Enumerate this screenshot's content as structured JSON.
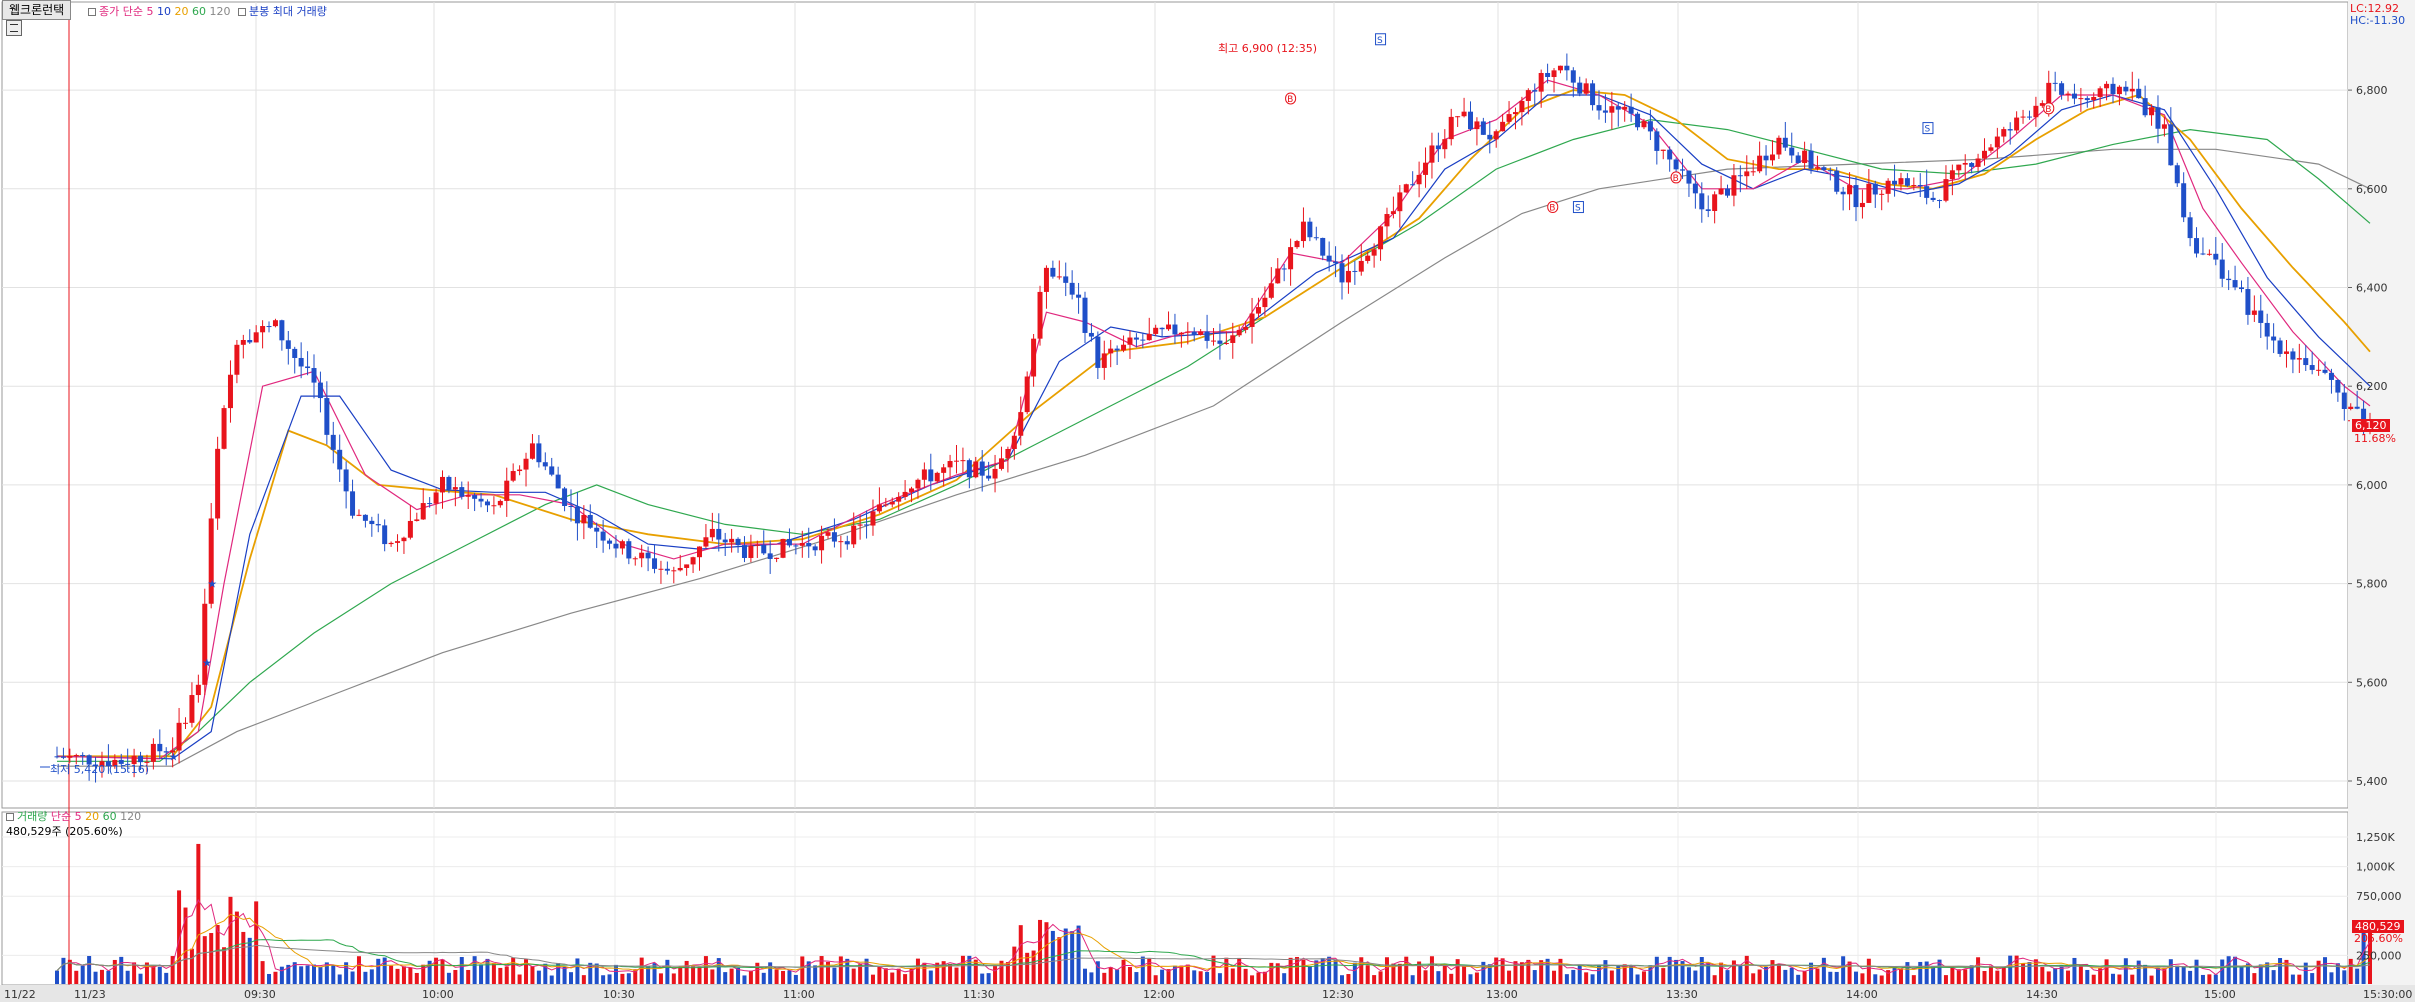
{
  "window": {
    "tab_label": "웹크론런택",
    "settings_button": "gear-icon"
  },
  "price_panel": {
    "legend": {
      "series_label": "종가 단순",
      "ma": [
        {
          "label": "5",
          "color": "#e0287e"
        },
        {
          "label": "10",
          "color": "#1a3fc4"
        },
        {
          "label": "20",
          "color": "#e8a000"
        },
        {
          "label": "60",
          "color": "#2fa84f"
        },
        {
          "label": "120",
          "color": "#888888"
        }
      ],
      "extra_label": "분봉 최대 거래량"
    },
    "top_right": {
      "lc": "LC:12.92",
      "hc": "HC:-11.30"
    },
    "y_ticks": [
      "6,800",
      "6,600",
      "6,400",
      "6,200",
      "6,000",
      "5,800",
      "5,600",
      "5,400"
    ],
    "high_annotation": "최고 6,900 (12:35)",
    "low_annotation": "최저 5,420 (15:16)",
    "current_price": "6,120",
    "current_change": "11.68%",
    "up_color": "#e8141c",
    "down_color": "#1f4fc8"
  },
  "volume_panel": {
    "legend": {
      "series_label": "거래량",
      "ma_label": "단순",
      "ma": [
        {
          "label": "5",
          "color": "#e0287e"
        },
        {
          "label": "20",
          "color": "#e8a000"
        },
        {
          "label": "60",
          "color": "#2fa84f"
        },
        {
          "label": "120",
          "color": "#888888"
        }
      ]
    },
    "current_volume": "480,529주 (205.60%)",
    "y_ticks": [
      "1,250K",
      "1,000K",
      "750,000",
      "250,000"
    ],
    "current_value": "480,529",
    "current_pct": "205.60%"
  },
  "time_axis": {
    "labels": [
      "11/22",
      "11/23",
      "09:30",
      "10:00",
      "10:30",
      "11:00",
      "11:30",
      "12:00",
      "12:30",
      "13:00",
      "13:30",
      "14:00",
      "14:30",
      "15:00",
      "15:30:00"
    ]
  },
  "chart_data": {
    "type": "candlestick",
    "price_ylim": [
      5400,
      6900
    ],
    "volume_ylim": [
      0,
      1250000
    ],
    "price_path": [
      [
        0,
        5450
      ],
      [
        25,
        5440
      ],
      [
        45,
        5470
      ],
      [
        55,
        5600
      ],
      [
        62,
        6050
      ],
      [
        70,
        6300
      ],
      [
        85,
        6320
      ],
      [
        100,
        6200
      ],
      [
        115,
        5950
      ],
      [
        130,
        5880
      ],
      [
        150,
        6000
      ],
      [
        170,
        5950
      ],
      [
        185,
        6080
      ],
      [
        200,
        5950
      ],
      [
        220,
        5870
      ],
      [
        240,
        5820
      ],
      [
        255,
        5900
      ],
      [
        270,
        5860
      ],
      [
        290,
        5880
      ],
      [
        310,
        5900
      ],
      [
        330,
        6000
      ],
      [
        350,
        6040
      ],
      [
        365,
        6020
      ],
      [
        375,
        6150
      ],
      [
        385,
        6450
      ],
      [
        395,
        6400
      ],
      [
        405,
        6250
      ],
      [
        420,
        6290
      ],
      [
        440,
        6320
      ],
      [
        455,
        6280
      ],
      [
        470,
        6380
      ],
      [
        485,
        6520
      ],
      [
        500,
        6420
      ],
      [
        515,
        6510
      ],
      [
        530,
        6640
      ],
      [
        545,
        6750
      ],
      [
        560,
        6700
      ],
      [
        575,
        6810
      ],
      [
        585,
        6850
      ],
      [
        600,
        6770
      ],
      [
        615,
        6740
      ],
      [
        630,
        6640
      ],
      [
        640,
        6560
      ],
      [
        655,
        6620
      ],
      [
        670,
        6700
      ],
      [
        685,
        6640
      ],
      [
        700,
        6580
      ],
      [
        715,
        6620
      ],
      [
        730,
        6580
      ],
      [
        745,
        6660
      ],
      [
        760,
        6720
      ],
      [
        775,
        6800
      ],
      [
        790,
        6780
      ],
      [
        805,
        6810
      ],
      [
        820,
        6720
      ],
      [
        830,
        6500
      ],
      [
        845,
        6420
      ],
      [
        860,
        6300
      ],
      [
        875,
        6250
      ],
      [
        890,
        6170
      ],
      [
        900,
        6130
      ]
    ],
    "ma5": [
      [
        0,
        5450
      ],
      [
        40,
        5445
      ],
      [
        55,
        5500
      ],
      [
        65,
        5800
      ],
      [
        80,
        6200
      ],
      [
        100,
        6230
      ],
      [
        120,
        6020
      ],
      [
        140,
        5950
      ],
      [
        160,
        5980
      ],
      [
        180,
        5980
      ],
      [
        200,
        5960
      ],
      [
        220,
        5880
      ],
      [
        240,
        5850
      ],
      [
        260,
        5880
      ],
      [
        290,
        5880
      ],
      [
        320,
        5960
      ],
      [
        350,
        6020
      ],
      [
        370,
        6050
      ],
      [
        385,
        6350
      ],
      [
        400,
        6330
      ],
      [
        420,
        6280
      ],
      [
        440,
        6310
      ],
      [
        460,
        6310
      ],
      [
        480,
        6470
      ],
      [
        500,
        6450
      ],
      [
        520,
        6550
      ],
      [
        540,
        6700
      ],
      [
        560,
        6740
      ],
      [
        580,
        6820
      ],
      [
        600,
        6790
      ],
      [
        620,
        6730
      ],
      [
        640,
        6600
      ],
      [
        660,
        6600
      ],
      [
        680,
        6660
      ],
      [
        700,
        6600
      ],
      [
        720,
        6600
      ],
      [
        740,
        6620
      ],
      [
        760,
        6700
      ],
      [
        780,
        6790
      ],
      [
        800,
        6790
      ],
      [
        820,
        6750
      ],
      [
        835,
        6560
      ],
      [
        850,
        6450
      ],
      [
        870,
        6310
      ],
      [
        890,
        6200
      ],
      [
        900,
        6160
      ]
    ],
    "ma10": [
      [
        0,
        5450
      ],
      [
        45,
        5445
      ],
      [
        60,
        5500
      ],
      [
        75,
        5900
      ],
      [
        95,
        6180
      ],
      [
        110,
        6180
      ],
      [
        130,
        6030
      ],
      [
        150,
        5990
      ],
      [
        170,
        5985
      ],
      [
        190,
        5985
      ],
      [
        210,
        5940
      ],
      [
        230,
        5880
      ],
      [
        250,
        5870
      ],
      [
        280,
        5880
      ],
      [
        310,
        5930
      ],
      [
        340,
        6000
      ],
      [
        370,
        6050
      ],
      [
        390,
        6250
      ],
      [
        410,
        6320
      ],
      [
        430,
        6300
      ],
      [
        460,
        6310
      ],
      [
        490,
        6430
      ],
      [
        520,
        6500
      ],
      [
        540,
        6640
      ],
      [
        560,
        6700
      ],
      [
        580,
        6790
      ],
      [
        600,
        6790
      ],
      [
        620,
        6750
      ],
      [
        640,
        6650
      ],
      [
        660,
        6600
      ],
      [
        680,
        6640
      ],
      [
        700,
        6620
      ],
      [
        720,
        6590
      ],
      [
        740,
        6610
      ],
      [
        760,
        6670
      ],
      [
        780,
        6760
      ],
      [
        800,
        6790
      ],
      [
        820,
        6760
      ],
      [
        840,
        6600
      ],
      [
        860,
        6420
      ],
      [
        880,
        6300
      ],
      [
        900,
        6200
      ]
    ],
    "ma20": [
      [
        0,
        5450
      ],
      [
        45,
        5450
      ],
      [
        60,
        5550
      ],
      [
        75,
        5850
      ],
      [
        90,
        6110
      ],
      [
        105,
        6080
      ],
      [
        125,
        6000
      ],
      [
        145,
        5990
      ],
      [
        170,
        5980
      ],
      [
        200,
        5930
      ],
      [
        230,
        5900
      ],
      [
        260,
        5880
      ],
      [
        290,
        5890
      ],
      [
        320,
        5940
      ],
      [
        350,
        6010
      ],
      [
        380,
        6150
      ],
      [
        410,
        6270
      ],
      [
        440,
        6290
      ],
      [
        470,
        6340
      ],
      [
        500,
        6440
      ],
      [
        530,
        6540
      ],
      [
        550,
        6660
      ],
      [
        570,
        6760
      ],
      [
        590,
        6800
      ],
      [
        610,
        6790
      ],
      [
        630,
        6740
      ],
      [
        650,
        6660
      ],
      [
        670,
        6640
      ],
      [
        690,
        6640
      ],
      [
        710,
        6610
      ],
      [
        730,
        6600
      ],
      [
        750,
        6630
      ],
      [
        770,
        6700
      ],
      [
        790,
        6760
      ],
      [
        810,
        6790
      ],
      [
        830,
        6700
      ],
      [
        850,
        6560
      ],
      [
        870,
        6440
      ],
      [
        890,
        6330
      ],
      [
        900,
        6270
      ]
    ],
    "ma60": [
      [
        0,
        5440
      ],
      [
        40,
        5440
      ],
      [
        55,
        5500
      ],
      [
        75,
        5600
      ],
      [
        100,
        5700
      ],
      [
        130,
        5800
      ],
      [
        160,
        5880
      ],
      [
        190,
        5960
      ],
      [
        210,
        6000
      ],
      [
        230,
        5960
      ],
      [
        260,
        5920
      ],
      [
        290,
        5900
      ],
      [
        320,
        5930
      ],
      [
        350,
        6000
      ],
      [
        380,
        6080
      ],
      [
        410,
        6160
      ],
      [
        440,
        6240
      ],
      [
        470,
        6340
      ],
      [
        500,
        6440
      ],
      [
        530,
        6530
      ],
      [
        560,
        6640
      ],
      [
        590,
        6700
      ],
      [
        620,
        6740
      ],
      [
        650,
        6720
      ],
      [
        680,
        6680
      ],
      [
        710,
        6640
      ],
      [
        740,
        6630
      ],
      [
        770,
        6650
      ],
      [
        800,
        6690
      ],
      [
        830,
        6720
      ],
      [
        860,
        6700
      ],
      [
        880,
        6620
      ],
      [
        900,
        6530
      ]
    ],
    "ma120": [
      [
        0,
        5430
      ],
      [
        45,
        5430
      ],
      [
        70,
        5500
      ],
      [
        100,
        5560
      ],
      [
        150,
        5660
      ],
      [
        200,
        5740
      ],
      [
        250,
        5810
      ],
      [
        300,
        5890
      ],
      [
        350,
        5980
      ],
      [
        400,
        6060
      ],
      [
        450,
        6160
      ],
      [
        500,
        6330
      ],
      [
        540,
        6460
      ],
      [
        570,
        6550
      ],
      [
        600,
        6600
      ],
      [
        650,
        6640
      ],
      [
        700,
        6650
      ],
      [
        750,
        6660
      ],
      [
        800,
        6680
      ],
      [
        840,
        6680
      ],
      [
        880,
        6650
      ],
      [
        900,
        6600
      ]
    ],
    "signals": [
      {
        "type": "S",
        "x": 515,
        "value": 6900
      },
      {
        "type": "B",
        "x": 480,
        "value": 6780
      },
      {
        "type": "B",
        "x": 582,
        "value": 6560
      },
      {
        "type": "S",
        "x": 592,
        "value": 6560
      },
      {
        "type": "B",
        "x": 630,
        "value": 6620
      },
      {
        "type": "S",
        "x": 728,
        "value": 6720
      },
      {
        "type": "B",
        "x": 775,
        "value": 6760
      }
    ],
    "volume_bars_note": "volume bars synthesized along the price path"
  }
}
